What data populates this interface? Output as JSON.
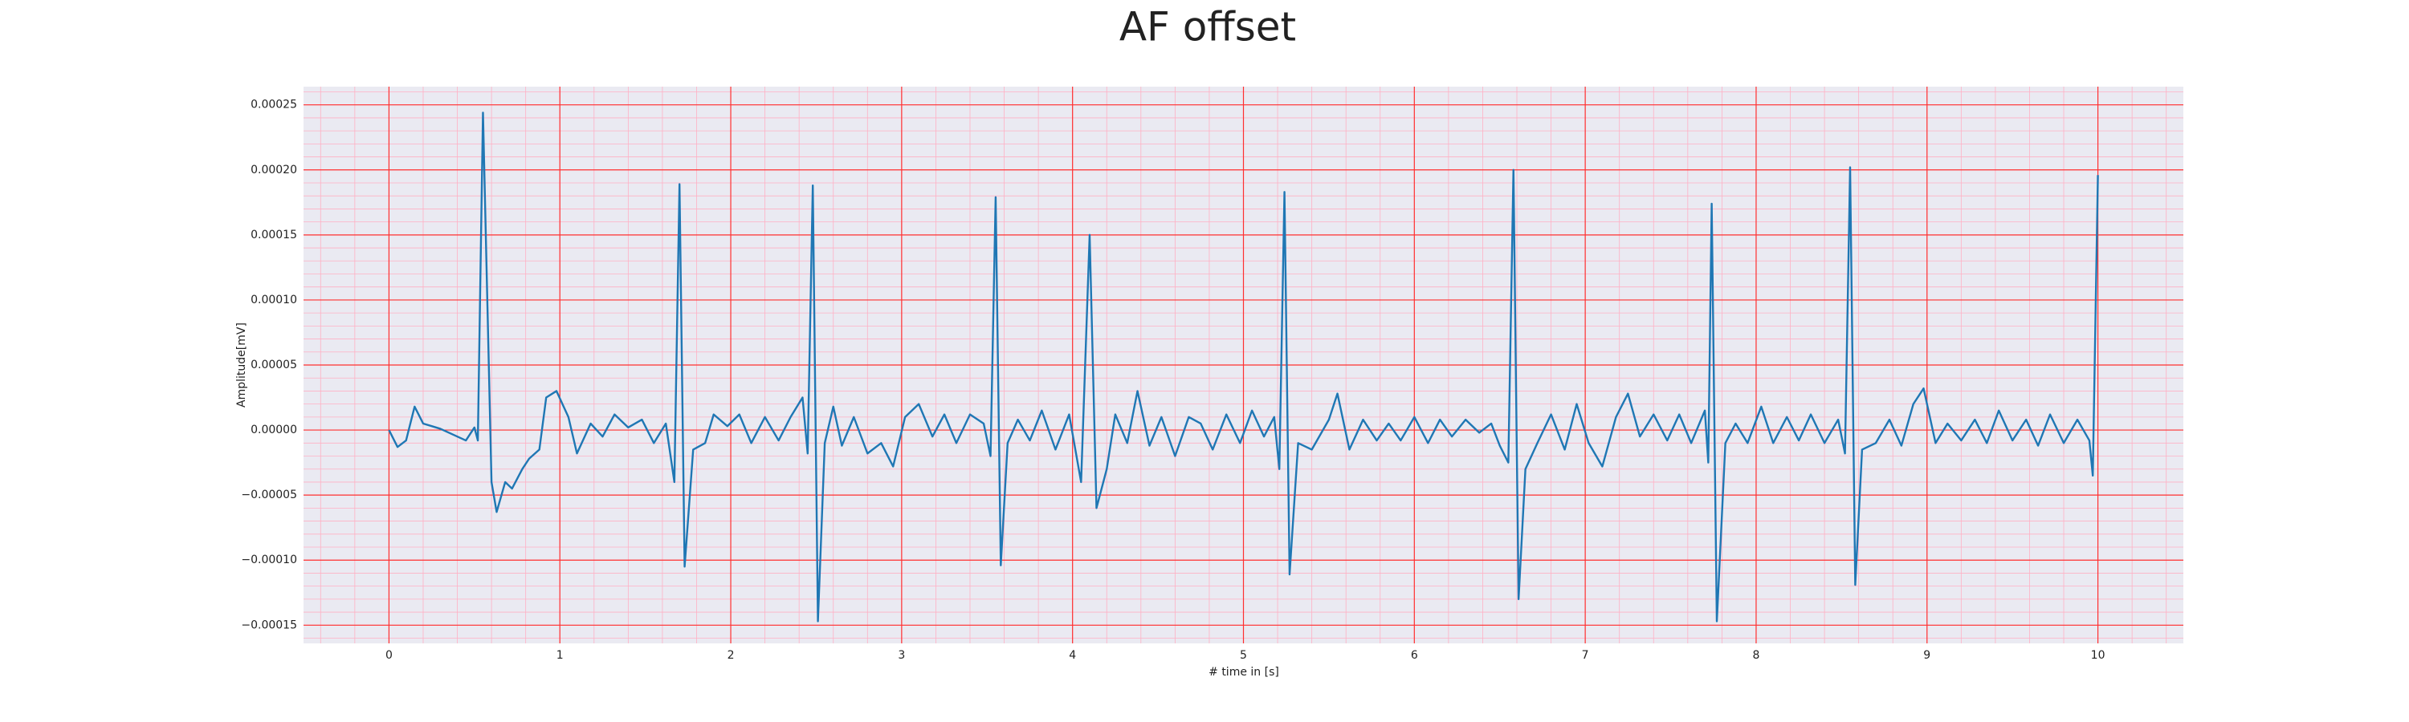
{
  "chart_data": {
    "type": "line",
    "title": "AF offset",
    "xlabel": "# time in [s]",
    "ylabel": "Amplitude[mV]",
    "x": [
      0,
      0.05,
      0.1,
      0.15,
      0.2,
      0.25,
      0.3,
      0.35,
      0.4,
      0.45,
      0.5,
      0.52,
      0.55,
      0.6,
      0.63,
      0.68,
      0.72,
      0.78,
      0.82,
      0.88,
      0.92,
      0.98,
      1.05,
      1.1,
      1.18,
      1.25,
      1.32,
      1.4,
      1.48,
      1.55,
      1.62,
      1.67,
      1.7,
      1.73,
      1.78,
      1.85,
      1.9,
      1.98,
      2.05,
      2.12,
      2.2,
      2.28,
      2.35,
      2.42,
      2.45,
      2.48,
      2.51,
      2.55,
      2.6,
      2.65,
      2.72,
      2.8,
      2.88,
      2.95,
      3.02,
      3.1,
      3.18,
      3.25,
      3.32,
      3.4,
      3.48,
      3.52,
      3.55,
      3.58,
      3.62,
      3.68,
      3.75,
      3.82,
      3.9,
      3.98,
      4.05,
      4.1,
      4.14,
      4.2,
      4.25,
      4.32,
      4.38,
      4.45,
      4.52,
      4.6,
      4.68,
      4.75,
      4.82,
      4.9,
      4.98,
      5.05,
      5.12,
      5.18,
      5.21,
      5.24,
      5.27,
      5.32,
      5.4,
      5.5,
      5.55,
      5.62,
      5.7,
      5.78,
      5.85,
      5.92,
      6.0,
      6.08,
      6.15,
      6.22,
      6.3,
      6.38,
      6.45,
      6.5,
      6.55,
      6.58,
      6.61,
      6.65,
      6.72,
      6.8,
      6.88,
      6.95,
      7.02,
      7.1,
      7.18,
      7.25,
      7.32,
      7.4,
      7.48,
      7.55,
      7.62,
      7.7,
      7.72,
      7.74,
      7.77,
      7.82,
      7.88,
      7.95,
      8.03,
      8.1,
      8.18,
      8.25,
      8.32,
      8.4,
      8.48,
      8.52,
      8.55,
      8.58,
      8.62,
      8.7,
      8.78,
      8.85,
      8.92,
      8.98,
      9.05,
      9.12,
      9.2,
      9.28,
      9.35,
      9.42,
      9.5,
      9.58,
      9.65,
      9.72,
      9.8,
      9.88,
      9.95,
      9.97,
      10.0
    ],
    "series": [
      {
        "name": "AF offset",
        "color": "#1f77b4",
        "values": [
          0,
          -1.3e-05,
          -8e-06,
          1.8e-05,
          5e-06,
          3e-06,
          1e-06,
          -2e-06,
          -5e-06,
          -8e-06,
          2e-06,
          -8e-06,
          0.000244,
          -4e-05,
          -6.3e-05,
          -4e-05,
          -4.5e-05,
          -3e-05,
          -2.2e-05,
          -1.5e-05,
          2.5e-05,
          3e-05,
          1e-05,
          -1.8e-05,
          5e-06,
          -5e-06,
          1.2e-05,
          2e-06,
          8e-06,
          -1e-05,
          5e-06,
          -4e-05,
          0.000189,
          -0.000105,
          -1.5e-05,
          -1e-05,
          1.2e-05,
          3e-06,
          1.2e-05,
          -1e-05,
          1e-05,
          -8e-06,
          1e-05,
          2.5e-05,
          -1.8e-05,
          0.000188,
          -0.000147,
          -1e-05,
          1.8e-05,
          -1.2e-05,
          1e-05,
          -1.8e-05,
          -1e-05,
          -2.8e-05,
          1e-05,
          2e-05,
          -5e-06,
          1.2e-05,
          -1e-05,
          1.2e-05,
          5e-06,
          -2e-05,
          0.000179,
          -0.000104,
          -1e-05,
          8e-06,
          -8e-06,
          1.5e-05,
          -1.5e-05,
          1.2e-05,
          -4e-05,
          0.00015,
          -6e-05,
          -3e-05,
          1.2e-05,
          -1e-05,
          3e-05,
          -1.2e-05,
          1e-05,
          -2e-05,
          1e-05,
          5e-06,
          -1.5e-05,
          1.2e-05,
          -1e-05,
          1.5e-05,
          -5e-06,
          1e-05,
          -3e-05,
          0.000183,
          -0.000111,
          -1e-05,
          -1.5e-05,
          8e-06,
          2.8e-05,
          -1.5e-05,
          8e-06,
          -8e-06,
          5e-06,
          -8e-06,
          1e-05,
          -1e-05,
          8e-06,
          -5e-06,
          8e-06,
          -2e-06,
          5e-06,
          -1.2e-05,
          -2.5e-05,
          0.0002,
          -0.00013,
          -3e-05,
          -1e-05,
          1.2e-05,
          -1.5e-05,
          2e-05,
          -1e-05,
          -2.8e-05,
          1e-05,
          2.8e-05,
          -5e-06,
          1.2e-05,
          -8e-06,
          1.2e-05,
          -1e-05,
          1.5e-05,
          -2.5e-05,
          0.000174,
          -0.000147,
          -1e-05,
          5e-06,
          -1e-05,
          1.8e-05,
          -1e-05,
          1e-05,
          -8e-06,
          1.2e-05,
          -1e-05,
          8e-06,
          -1.8e-05,
          0.000202,
          -0.000119,
          -1.5e-05,
          -1e-05,
          8e-06,
          -1.2e-05,
          2e-05,
          3.2e-05,
          -1e-05,
          5e-06,
          -8e-06,
          8e-06,
          -1e-05,
          1.5e-05,
          -8e-06,
          8e-06,
          -1.2e-05,
          1.2e-05,
          -1e-05,
          8e-06,
          -8e-06,
          -3.5e-05,
          0.000196
        ]
      }
    ],
    "xlim": [
      -0.5,
      10.5
    ],
    "xticks": [
      0,
      1,
      2,
      3,
      4,
      5,
      6,
      7,
      8,
      9,
      10
    ],
    "ylim": [
      -0.000164,
      0.000264
    ],
    "yticks": [
      {
        "value": -0.00015,
        "label": "−0.00015"
      },
      {
        "value": -0.0001,
        "label": "−0.00010"
      },
      {
        "value": -5e-05,
        "label": "−0.00005"
      },
      {
        "value": 0,
        "label": "0.00000"
      },
      {
        "value": 5e-05,
        "label": "0.00005"
      },
      {
        "value": 0.0001,
        "label": "0.00010"
      },
      {
        "value": 0.00015,
        "label": "0.00015"
      },
      {
        "value": 0.0002,
        "label": "0.00020"
      },
      {
        "value": 0.00025,
        "label": "0.00025"
      }
    ],
    "grid": true,
    "grid_color": "#ff3030",
    "minor_grid": true,
    "minor_grid_color": "#ffb0c4",
    "background": "#eaeaf2"
  }
}
